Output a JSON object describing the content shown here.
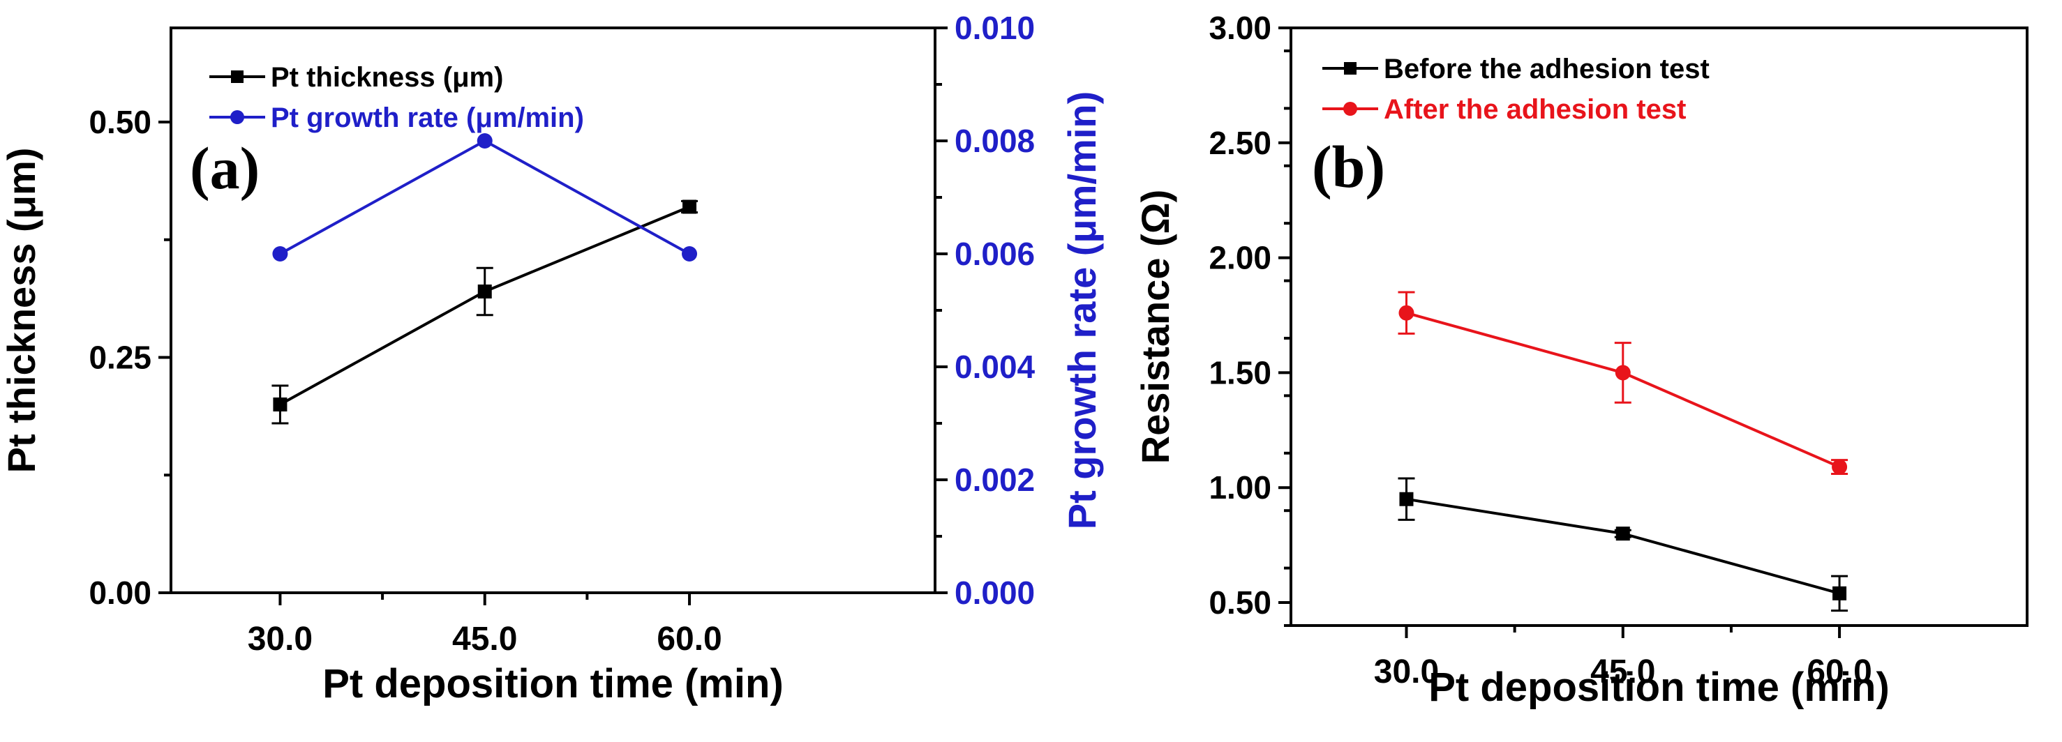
{
  "chart_data": [
    {
      "type": "line",
      "panel_label": "(a)",
      "xlabel": "Pt deposition time (min)",
      "ylabel": "Pt thickness (μm)",
      "y2label": "Pt growth rate (μm/min)",
      "x_ticks": [
        "30.0",
        "45.0",
        "60.0"
      ],
      "x_tick_values": [
        30,
        45,
        60
      ],
      "xlim": [
        22,
        78
      ],
      "ylim": [
        0,
        0.6
      ],
      "y_ticks": [
        "0.00",
        "0.25",
        "0.50"
      ],
      "y_tick_values": [
        0,
        0.25,
        0.5
      ],
      "y2lim": [
        0,
        0.01
      ],
      "y2_ticks": [
        "0.000",
        "0.002",
        "0.004",
        "0.006",
        "0.008",
        "0.010"
      ],
      "y2_tick_values": [
        0,
        0.002,
        0.004,
        0.006,
        0.008,
        0.01
      ],
      "legend_position": "top-left",
      "series": [
        {
          "name": "Pt thickness (μm)",
          "axis": "left",
          "marker": "square",
          "color": "#000000",
          "x": [
            30,
            45,
            60
          ],
          "values": [
            0.2,
            0.32,
            0.41
          ],
          "errors": [
            0.02,
            0.025,
            0.006
          ]
        },
        {
          "name": "Pt growth rate (μm/min)",
          "axis": "right",
          "marker": "circle",
          "color": "#1f1fc8",
          "x": [
            30,
            45,
            60
          ],
          "values": [
            0.006,
            0.008,
            0.006
          ],
          "errors": [
            0,
            0,
            0
          ]
        }
      ]
    },
    {
      "type": "line",
      "panel_label": "(b)",
      "xlabel": "Pt deposition time (min)",
      "ylabel": "Resistance (Ω)",
      "x_ticks": [
        "30.0",
        "45.0",
        "60.0"
      ],
      "x_tick_values": [
        30,
        45,
        60
      ],
      "xlim": [
        22,
        73
      ],
      "ylim": [
        0.4,
        3.0
      ],
      "y_ticks": [
        "0.50",
        "1.00",
        "1.50",
        "2.00",
        "2.50",
        "3.00"
      ],
      "y_tick_values": [
        0.5,
        1.0,
        1.5,
        2.0,
        2.5,
        3.0
      ],
      "legend_position": "top-left",
      "series": [
        {
          "name": "Before the adhesion test",
          "marker": "square",
          "color": "#000000",
          "x": [
            30,
            45,
            60
          ],
          "values": [
            0.95,
            0.8,
            0.54
          ],
          "errors": [
            0.09,
            0.015,
            0.075
          ]
        },
        {
          "name": "After the adhesion test",
          "marker": "circle",
          "color": "#e8141b",
          "x": [
            30,
            45,
            60
          ],
          "values": [
            1.76,
            1.5,
            1.09
          ],
          "errors": [
            0.09,
            0.13,
            0.03
          ]
        }
      ]
    }
  ]
}
